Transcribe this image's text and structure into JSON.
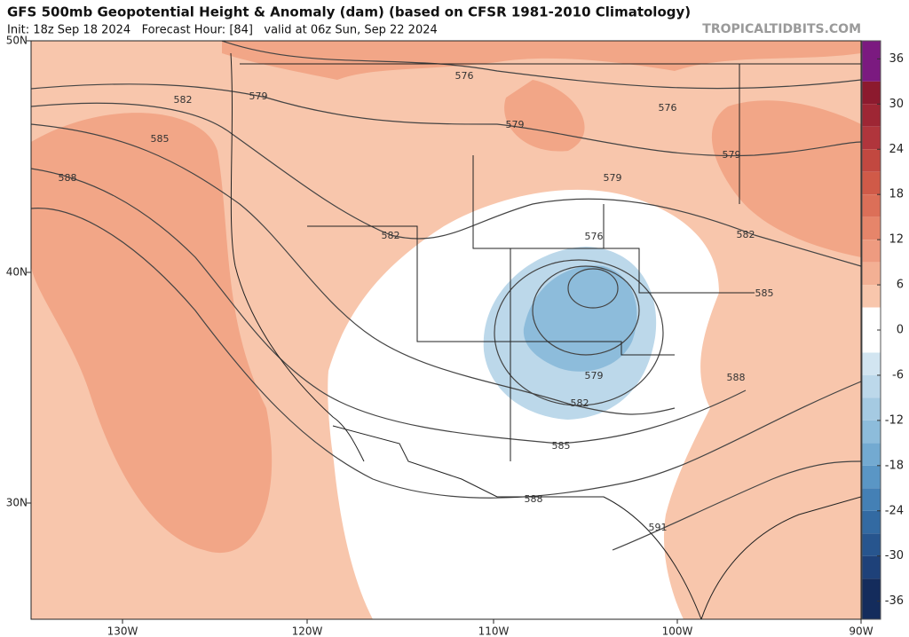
{
  "header": {
    "title": "GFS 500mb Geopotential Height & Anomaly (dam) (based on CFSR 1981-2010 Climatology)",
    "subtitle": "Init: 18z Sep 18 2024   Forecast Hour: [84]   valid at 06z Sun, Sep 22 2024",
    "watermark": "TROPICALTIDBITS.COM"
  },
  "map": {
    "latitude_labels": [
      "50N",
      "40N",
      "30N"
    ],
    "longitude_labels": [
      "130W",
      "120W",
      "110W",
      "100W",
      "90W"
    ],
    "contour_labels": [
      "576",
      "576",
      "576",
      "579",
      "579",
      "579",
      "579",
      "579",
      "582",
      "582",
      "582",
      "582",
      "585",
      "585",
      "585",
      "588",
      "588",
      "588",
      "591"
    ]
  },
  "colorbar": {
    "lim": [
      -38.4,
      38.4
    ],
    "ticks": [
      36,
      30,
      24,
      18,
      12,
      6,
      0,
      -6,
      -12,
      -18,
      -24,
      -30,
      -36
    ]
  }
}
